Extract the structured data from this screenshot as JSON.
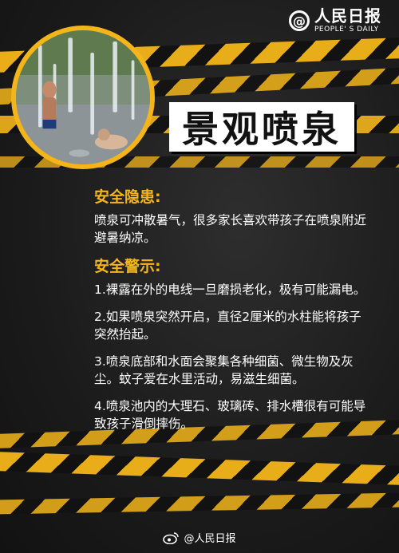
{
  "logo": {
    "cn": "人民日报",
    "en": "PEOPLE' S DAILY",
    "mark": "@"
  },
  "title": "景观喷泉",
  "sections": [
    {
      "heading": "安全隐患:",
      "items": [
        "喷泉可冲散暑气，很多家长喜欢带孩子在喷泉附近避暑纳凉。"
      ]
    },
    {
      "heading": "安全警示:",
      "items": [
        "1.裸露在外的电线一旦磨损老化，极有可能漏电。",
        "2.如果喷泉突然开启，直径2厘米的水柱能将孩子突然抬起。",
        "3.喷泉底部和水面会聚集各种细菌、微生物及灰尘。蚊子爱在水里活动，易滋生细菌。",
        "4.喷泉池内的大理石、玻璃砖、排水槽很有可能导致孩子滑倒摔伤。"
      ]
    }
  ],
  "footer": {
    "handle": "@人民日报"
  },
  "colors": {
    "accent": "#f3b519",
    "background": "#1a1a1a"
  },
  "icons": {
    "logo": "at-sign-icon",
    "footer": "weibo-icon"
  }
}
